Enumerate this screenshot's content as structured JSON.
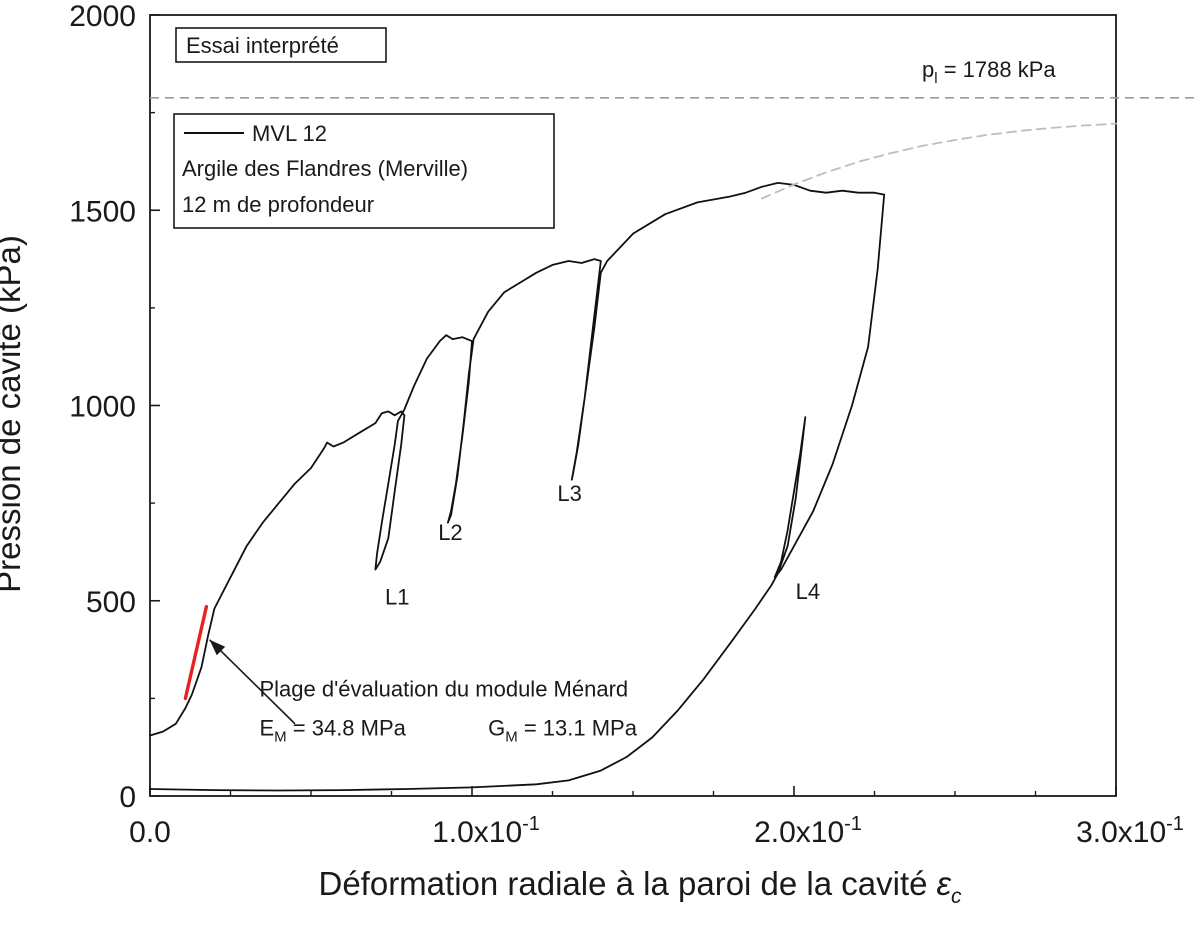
{
  "chart_data": {
    "type": "line",
    "xlabel": "Déformation radiale à la paroi de la cavité",
    "xlabel_symbol": "ε",
    "xlabel_symbol_sub": "c",
    "ylabel": "Pression de cavité (kPa)",
    "xlim": [
      0,
      0.3
    ],
    "ylim": [
      0,
      2000
    ],
    "x_ticks": [
      0,
      0.1,
      0.2,
      0.3
    ],
    "x_tick_labels": [
      "0.0",
      "1.0x10",
      "2.0x10",
      "3.0x10"
    ],
    "x_tick_exp": [
      "",
      "-1",
      "-1",
      "-1"
    ],
    "x_minor_step": 0.025,
    "y_ticks": [
      0,
      500,
      1000,
      1500,
      2000
    ],
    "y_tick_labels": [
      "0",
      "500",
      "1000",
      "1500",
      "2000"
    ],
    "y_minor_step": 250,
    "top_label": "Essai interprété",
    "pl": {
      "value": 1788,
      "label_main": "p",
      "label_sub": "l",
      "label_rest": " = 1788 kPa",
      "color": "#9a9a9a"
    },
    "legend": {
      "series_name": "MVL 12",
      "lines": [
        "Argile des Flandres (Merville)",
        "12 m de profondeur"
      ],
      "position": "top-left"
    },
    "series": [
      {
        "name": "MVL 12",
        "color": "#111111",
        "points": [
          [
            0,
            155
          ],
          [
            0.004,
            165
          ],
          [
            0.008,
            185
          ],
          [
            0.011,
            225
          ],
          [
            0.013,
            260
          ],
          [
            0.016,
            330
          ],
          [
            0.018,
            410
          ],
          [
            0.02,
            480
          ],
          [
            0.025,
            560
          ],
          [
            0.03,
            640
          ],
          [
            0.035,
            700
          ],
          [
            0.04,
            750
          ],
          [
            0.045,
            800
          ],
          [
            0.05,
            840
          ],
          [
            0.054,
            890
          ],
          [
            0.055,
            905
          ],
          [
            0.057,
            895
          ],
          [
            0.06,
            905
          ],
          [
            0.065,
            930
          ],
          [
            0.07,
            955
          ],
          [
            0.072,
            980
          ],
          [
            0.074,
            985
          ],
          [
            0.076,
            975
          ],
          [
            0.078,
            985
          ],
          [
            0.079,
            975
          ],
          [
            0.078,
            900
          ],
          [
            0.076,
            780
          ],
          [
            0.074,
            660
          ],
          [
            0.0715,
            600
          ],
          [
            0.07,
            580
          ],
          [
            0.0705,
            620
          ],
          [
            0.072,
            700
          ],
          [
            0.074,
            800
          ],
          [
            0.076,
            900
          ],
          [
            0.077,
            960
          ],
          [
            0.079,
            990
          ],
          [
            0.082,
            1050
          ],
          [
            0.086,
            1120
          ],
          [
            0.09,
            1165
          ],
          [
            0.092,
            1180
          ],
          [
            0.094,
            1170
          ],
          [
            0.097,
            1175
          ],
          [
            0.1,
            1165
          ],
          [
            0.099,
            1060
          ],
          [
            0.097,
            920
          ],
          [
            0.095,
            800
          ],
          [
            0.0935,
            730
          ],
          [
            0.0925,
            700
          ],
          [
            0.0935,
            720
          ],
          [
            0.0955,
            820
          ],
          [
            0.0975,
            960
          ],
          [
            0.099,
            1080
          ],
          [
            0.1005,
            1170
          ],
          [
            0.105,
            1240
          ],
          [
            0.11,
            1290
          ],
          [
            0.115,
            1315
          ],
          [
            0.12,
            1340
          ],
          [
            0.125,
            1360
          ],
          [
            0.13,
            1370
          ],
          [
            0.134,
            1365
          ],
          [
            0.138,
            1375
          ],
          [
            0.14,
            1370
          ],
          [
            0.139,
            1300
          ],
          [
            0.137,
            1160
          ],
          [
            0.135,
            1020
          ],
          [
            0.133,
            900
          ],
          [
            0.1315,
            830
          ],
          [
            0.131,
            810
          ],
          [
            0.1325,
            880
          ],
          [
            0.135,
            1020
          ],
          [
            0.138,
            1200
          ],
          [
            0.14,
            1340
          ],
          [
            0.142,
            1370
          ],
          [
            0.15,
            1440
          ],
          [
            0.16,
            1490
          ],
          [
            0.17,
            1520
          ],
          [
            0.18,
            1535
          ],
          [
            0.185,
            1545
          ],
          [
            0.19,
            1560
          ],
          [
            0.195,
            1570
          ],
          [
            0.2,
            1565
          ],
          [
            0.205,
            1550
          ],
          [
            0.21,
            1545
          ],
          [
            0.215,
            1550
          ],
          [
            0.22,
            1545
          ],
          [
            0.225,
            1545
          ],
          [
            0.228,
            1540
          ],
          [
            0.226,
            1350
          ],
          [
            0.223,
            1150
          ],
          [
            0.218,
            1000
          ],
          [
            0.212,
            850
          ],
          [
            0.206,
            730
          ],
          [
            0.2,
            640
          ],
          [
            0.196,
            580
          ],
          [
            0.194,
            560
          ],
          [
            0.196,
            600
          ],
          [
            0.198,
            680
          ],
          [
            0.2,
            780
          ],
          [
            0.202,
            880
          ],
          [
            0.2035,
            970
          ],
          [
            0.2025,
            900
          ],
          [
            0.2005,
            760
          ],
          [
            0.198,
            640
          ],
          [
            0.195,
            570
          ],
          [
            0.193,
            540
          ],
          [
            0.188,
            480
          ],
          [
            0.181,
            400
          ],
          [
            0.172,
            300
          ],
          [
            0.164,
            220
          ],
          [
            0.156,
            150
          ],
          [
            0.148,
            100
          ],
          [
            0.14,
            65
          ],
          [
            0.13,
            40
          ],
          [
            0.12,
            30
          ],
          [
            0.1,
            22
          ],
          [
            0.08,
            18
          ],
          [
            0.06,
            15
          ],
          [
            0.04,
            14
          ],
          [
            0.02,
            15
          ],
          [
            0,
            18
          ]
        ]
      },
      {
        "name": "",
        "style": "dashed",
        "color": "#bdbdbd",
        "points": [
          [
            0.19,
            1530
          ],
          [
            0.2,
            1566
          ],
          [
            0.21,
            1597
          ],
          [
            0.22,
            1624
          ],
          [
            0.23,
            1646
          ],
          [
            0.24,
            1665
          ],
          [
            0.25,
            1680
          ],
          [
            0.26,
            1693
          ],
          [
            0.27,
            1703
          ],
          [
            0.28,
            1711
          ],
          [
            0.29,
            1717
          ],
          [
            0.3,
            1722
          ]
        ]
      },
      {
        "name": "",
        "color": "#e8231f",
        "width": 3.4,
        "points": [
          [
            0.011,
            250
          ],
          [
            0.0175,
            485
          ]
        ]
      }
    ],
    "loop_labels": [
      {
        "text": "L1",
        "x": 0.073,
        "y": 490
      },
      {
        "text": "L2",
        "x": 0.0895,
        "y": 655
      },
      {
        "text": "L3",
        "x": 0.1265,
        "y": 755
      },
      {
        "text": "L4",
        "x": 0.2005,
        "y": 505
      }
    ],
    "annotation": {
      "text": "Plage d'évaluation du module Ménard",
      "arrow_from": [
        0.045,
        185
      ],
      "arrow_to": [
        0.0185,
        400
      ],
      "text_at": [
        0.034,
        255
      ],
      "em_main": "E",
      "em_sub": "M",
      "em_rest": " = 34.8 MPa",
      "em_at": [
        0.034,
        155
      ],
      "gm_main": "G",
      "gm_sub": "M",
      "gm_rest": " = 13.1 MPa",
      "gm_at": [
        0.105,
        155
      ],
      "gm_color": "#1f9c59"
    }
  }
}
